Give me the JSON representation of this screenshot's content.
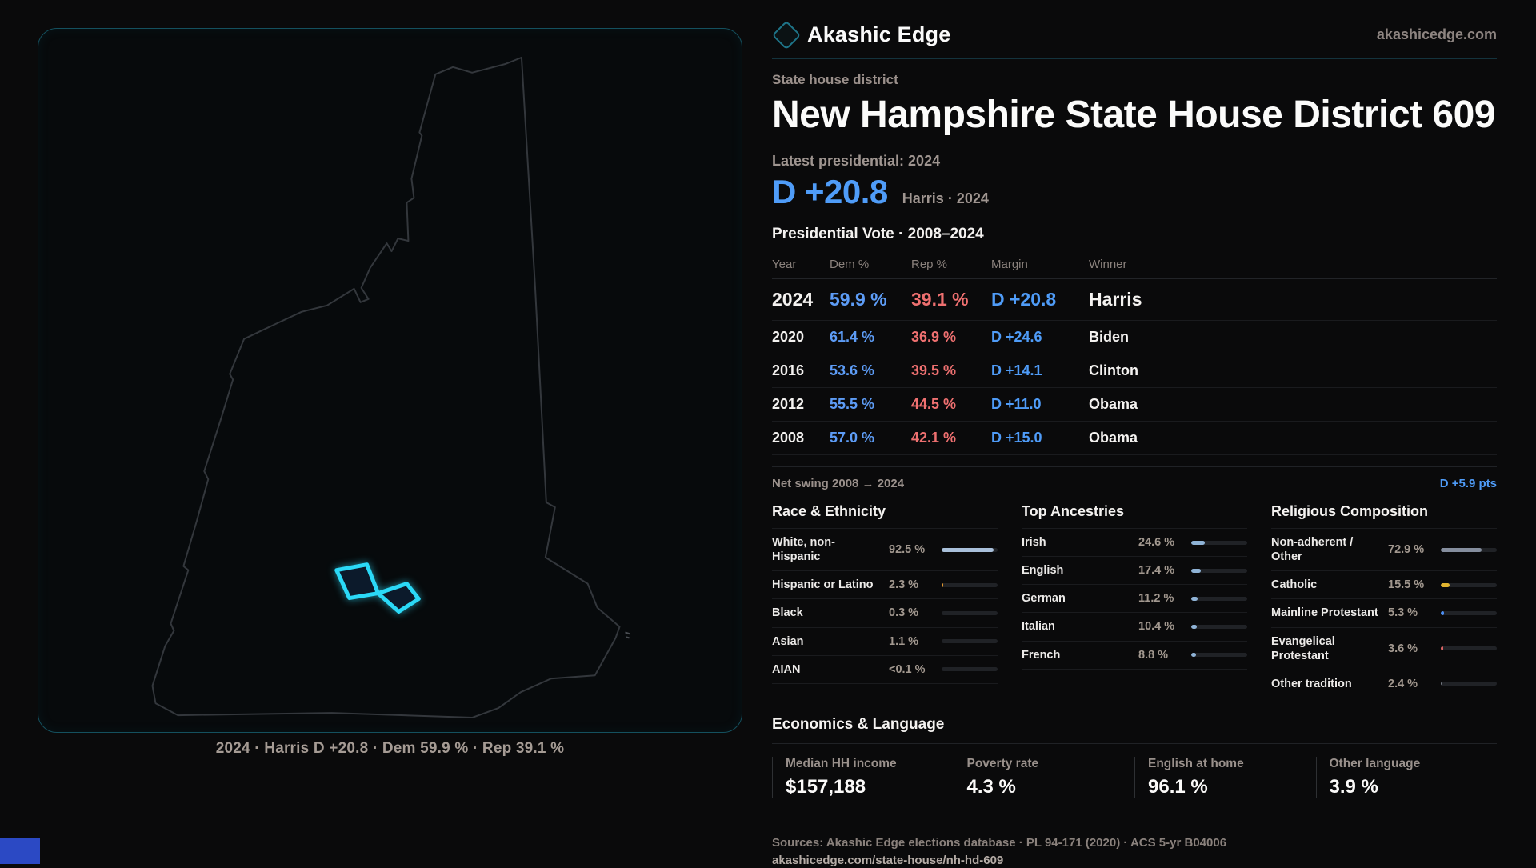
{
  "brand": {
    "name": "Akashic Edge",
    "domain": "akashicedge.com"
  },
  "header": {
    "kicker": "State house district",
    "title": "New Hampshire State House District 609"
  },
  "latest": {
    "label": "Latest presidential: 2024",
    "margin": "D +20.8",
    "detail": "Harris · 2024"
  },
  "map": {
    "caption": "2024 · Harris D +20.8 · Dem 59.9 % · Rep 39.1 %"
  },
  "chart_data": {
    "type": "table",
    "title": "Presidential Vote · 2008–2024",
    "columns": [
      "Year",
      "Dem %",
      "Rep %",
      "Margin",
      "Winner"
    ],
    "rows": [
      {
        "year": "2024",
        "dem": "59.9 %",
        "rep": "39.1 %",
        "margin": "D +20.8",
        "winner": "Harris"
      },
      {
        "year": "2020",
        "dem": "61.4 %",
        "rep": "36.9 %",
        "margin": "D +24.6",
        "winner": "Biden"
      },
      {
        "year": "2016",
        "dem": "53.6 %",
        "rep": "39.5 %",
        "margin": "D +14.1",
        "winner": "Clinton"
      },
      {
        "year": "2012",
        "dem": "55.5 %",
        "rep": "44.5 %",
        "margin": "D +11.0",
        "winner": "Obama"
      },
      {
        "year": "2008",
        "dem": "57.0 %",
        "rep": "42.1 %",
        "margin": "D +15.0",
        "winner": "Obama"
      }
    ]
  },
  "net_swing": {
    "label": "Net swing 2008 → 2024",
    "value": "D +5.9 pts"
  },
  "demographics": [
    {
      "title": "Race & Ethnicity",
      "rows": [
        {
          "label": "White, non-Hispanic",
          "value": "92.5 %",
          "bar_pct": 92.5,
          "bar_color": "#a9c0da"
        },
        {
          "label": "Hispanic or Latino",
          "value": "2.3 %",
          "bar_pct": 2.5,
          "bar_color": "#e0962e"
        },
        {
          "label": "Black",
          "value": "0.3 %",
          "bar_pct": 0,
          "bar_color": "#a9c0da"
        },
        {
          "label": "Asian",
          "value": "1.1 %",
          "bar_pct": 1.8,
          "bar_color": "#2ec4a0"
        },
        {
          "label": "AIAN",
          "value": "<0.1 %",
          "bar_pct": 0,
          "bar_color": "#a9c0da"
        }
      ]
    },
    {
      "title": "Top Ancestries",
      "rows": [
        {
          "label": "Irish",
          "value": "24.6 %",
          "bar_pct": 24.6,
          "bar_color": "#8fb3d6"
        },
        {
          "label": "English",
          "value": "17.4 %",
          "bar_pct": 17.4,
          "bar_color": "#8fb3d6"
        },
        {
          "label": "German",
          "value": "11.2 %",
          "bar_pct": 11.2,
          "bar_color": "#8fb3d6"
        },
        {
          "label": "Italian",
          "value": "10.4 %",
          "bar_pct": 10.4,
          "bar_color": "#8fb3d6"
        },
        {
          "label": "French",
          "value": "8.8 %",
          "bar_pct": 8.8,
          "bar_color": "#8fb3d6"
        }
      ]
    },
    {
      "title": "Religious Composition",
      "rows": [
        {
          "label": "Non-adherent / Other",
          "value": "72.9 %",
          "bar_pct": 72.9,
          "bar_color": "#858e9e"
        },
        {
          "label": "Catholic",
          "value": "15.5 %",
          "bar_pct": 15.5,
          "bar_color": "#e2b42f"
        },
        {
          "label": "Mainline Protestant",
          "value": "5.3 %",
          "bar_pct": 5.3,
          "bar_color": "#4b8df0"
        },
        {
          "label": "Evangelical Protestant",
          "value": "3.6 %",
          "bar_pct": 3.6,
          "bar_color": "#e06464"
        },
        {
          "label": "Other tradition",
          "value": "2.4 %",
          "bar_pct": 2.4,
          "bar_color": "#767c85"
        }
      ]
    }
  ],
  "economics": {
    "title": "Economics & Language",
    "stats": [
      {
        "label": "Median HH income",
        "value": "$157,188"
      },
      {
        "label": "Poverty rate",
        "value": "4.3 %"
      },
      {
        "label": "English at home",
        "value": "96.1 %"
      },
      {
        "label": "Other language",
        "value": "3.9 %"
      }
    ]
  },
  "footer": {
    "sources": "Sources: Akashic Edge elections database · PL 94-171 (2020) · ACS 5-yr B04006",
    "url": "akashicedge.com/state-house/nh-hd-609"
  },
  "colors": {
    "dem_blue": "#5d9cf6",
    "rep_red": "#ee7070",
    "margin_blue": "#4f9cf8",
    "district_cyan": "#2bd9f7",
    "panel_border_teal": "#14505e",
    "accent_block_blue": "#2b49c4"
  }
}
